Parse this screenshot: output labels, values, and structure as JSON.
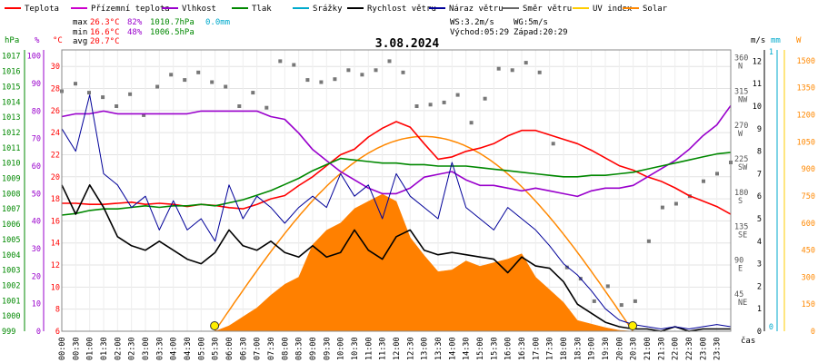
{
  "chart_data": {
    "type": "line",
    "title": "3.08.2024",
    "legend": [
      {
        "label": "Teplota",
        "color": "#ff0000"
      },
      {
        "label": "Přízemní teplota",
        "color": "#cc00cc"
      },
      {
        "label": "Vlhkost",
        "color": "#9900cc"
      },
      {
        "label": "Tlak",
        "color": "#008800"
      },
      {
        "label": "Srážky",
        "color": "#00aacc"
      },
      {
        "label": "Rychlost větru",
        "color": "#000000"
      },
      {
        "label": "Náraz větru",
        "color": "#000099"
      },
      {
        "label": "Směr větru",
        "color": "#666666"
      },
      {
        "label": "UV index",
        "color": "#ffcc00"
      },
      {
        "label": "Solar",
        "color": "#ff8800"
      }
    ],
    "stats": {
      "max_label": "max",
      "max_temp": "26.3°C",
      "max_hum": "82%",
      "max_press": "1010.7hPa",
      "rain": "0.0mm",
      "min_label": "min",
      "min_temp": "16.6°C",
      "min_hum": "48%",
      "min_press": "1006.5hPa",
      "avg_label": "avg",
      "avg_temp": "20.7°C",
      "wind_speed": "WS:3.2m/s",
      "wind_gust": "WG:5m/s",
      "sunrise": "Východ:05:29",
      "sunset": "Západ:20:29"
    },
    "axis_units": {
      "hpa": "hPa",
      "pct": "%",
      "temp": "°C",
      "ms": "m/s",
      "mm": "mm",
      "w": "W",
      "time": "čas"
    },
    "axes": {
      "hpa_ticks": [
        1017,
        1016,
        1015,
        1014,
        1013,
        1012,
        1011,
        1010,
        1009,
        1008,
        1007,
        1006,
        1005,
        1004,
        1003,
        1002,
        1001,
        1000,
        999
      ],
      "pct_ticks": [
        100,
        90,
        80,
        70,
        60,
        50,
        40,
        30,
        20,
        10,
        0
      ],
      "temp_ticks": [
        30,
        28,
        26,
        24,
        22,
        20,
        18,
        16,
        14,
        12,
        10,
        8,
        6
      ],
      "ms_ticks": [
        12,
        11,
        10,
        9,
        8,
        7,
        6,
        5,
        4,
        3,
        2,
        1,
        0
      ],
      "mm_ticks": [
        1,
        0
      ],
      "w_ticks": [
        1500,
        1350,
        1200,
        1050,
        900,
        750,
        600,
        450,
        300,
        150,
        0
      ],
      "dir_ticks": [
        {
          "deg": 360,
          "name": "N"
        },
        {
          "deg": 315,
          "name": "NW"
        },
        {
          "deg": 270,
          "name": "W"
        },
        {
          "deg": 225,
          "name": "SW"
        },
        {
          "deg": 180,
          "name": "S"
        },
        {
          "deg": 135,
          "name": "SE"
        },
        {
          "deg": 90,
          "name": "E"
        },
        {
          "deg": 45,
          "name": "NE"
        }
      ],
      "x_ticks": [
        "00:00",
        "00:30",
        "01:00",
        "01:30",
        "02:00",
        "02:30",
        "03:00",
        "03:30",
        "04:00",
        "04:30",
        "05:00",
        "05:30",
        "06:00",
        "06:30",
        "07:00",
        "07:30",
        "08:00",
        "08:30",
        "09:00",
        "09:30",
        "10:00",
        "10:30",
        "11:00",
        "11:30",
        "12:00",
        "12:30",
        "13:00",
        "13:30",
        "14:00",
        "14:30",
        "15:00",
        "15:30",
        "16:00",
        "16:30",
        "17:00",
        "17:30",
        "18:00",
        "18:30",
        "19:00",
        "19:30",
        "20:00",
        "20:30",
        "21:00",
        "21:30",
        "22:00",
        "22:30",
        "23:00",
        "23:30"
      ],
      "temp_range": [
        6,
        31.5
      ],
      "hpa_range": [
        999,
        1017.4
      ],
      "ms_range": [
        0,
        12.5
      ],
      "w_range": [
        0,
        1560
      ]
    },
    "x_hours": [
      0,
      1,
      2,
      3,
      4,
      5,
      6,
      7,
      8,
      9,
      10,
      11,
      12,
      13,
      14,
      15,
      16,
      17,
      18,
      19,
      20,
      21,
      22,
      23,
      24
    ],
    "series": [
      {
        "name": "Teplota",
        "unit": "°C",
        "color": "#ff0000",
        "x": [
          0,
          0.5,
          1,
          1.5,
          2,
          2.5,
          3,
          3.5,
          4,
          4.5,
          5,
          5.5,
          6,
          6.5,
          7,
          7.5,
          8,
          8.5,
          9,
          9.5,
          10,
          10.5,
          11,
          11.5,
          12,
          12.5,
          13,
          13.5,
          14,
          14.5,
          15,
          15.5,
          16,
          16.5,
          17,
          17.5,
          18,
          18.5,
          19,
          19.5,
          20,
          20.5,
          21,
          21.5,
          22,
          22.5,
          23,
          23.5,
          24
        ],
        "values": [
          17.6,
          17.6,
          17.5,
          17.5,
          17.6,
          17.7,
          17.5,
          17.6,
          17.5,
          17.3,
          17.5,
          17.4,
          17.2,
          17.1,
          17.5,
          18.0,
          18.3,
          19.2,
          20.0,
          21.0,
          22.0,
          22.5,
          23.6,
          24.4,
          25.0,
          24.5,
          23.0,
          21.6,
          21.8,
          22.3,
          22.6,
          23.0,
          23.7,
          24.2,
          24.2,
          23.8,
          23.4,
          23.0,
          22.4,
          21.7,
          21.0,
          20.6,
          20.0,
          19.6,
          19.0,
          18.3,
          17.8,
          17.3,
          16.6
        ]
      },
      {
        "name": "Vlhkost",
        "unit": "%",
        "color": "#9900cc",
        "x": [
          0,
          0.5,
          1,
          1.5,
          2,
          2.5,
          3,
          3.5,
          4,
          4.5,
          5,
          5.5,
          6,
          6.5,
          7,
          7.5,
          8,
          8.5,
          9,
          9.5,
          10,
          10.5,
          11,
          11.5,
          12,
          12.5,
          13,
          13.5,
          14,
          14.5,
          15,
          15.5,
          16,
          16.5,
          17,
          17.5,
          18,
          18.5,
          19,
          19.5,
          20,
          20.5,
          21,
          21.5,
          22,
          22.5,
          23,
          23.5,
          24
        ],
        "values": [
          78,
          79,
          79,
          80,
          79,
          79,
          79,
          79,
          79,
          79,
          80,
          80,
          80,
          80,
          80,
          78,
          77,
          72,
          66,
          62,
          58,
          55,
          52,
          50,
          50,
          52,
          56,
          57,
          58,
          55,
          53,
          53,
          52,
          51,
          52,
          51,
          50,
          49,
          51,
          52,
          52,
          53,
          56,
          59,
          62,
          66,
          71,
          75,
          82
        ]
      },
      {
        "name": "Tlak",
        "unit": "hPa",
        "color": "#008800",
        "x": [
          0,
          0.5,
          1,
          1.5,
          2,
          2.5,
          3,
          3.5,
          4,
          4.5,
          5,
          5.5,
          6,
          6.5,
          7,
          7.5,
          8,
          8.5,
          9,
          9.5,
          10,
          10.5,
          11,
          11.5,
          12,
          12.5,
          13,
          13.5,
          14,
          14.5,
          15,
          15.5,
          16,
          16.5,
          17,
          17.5,
          18,
          18.5,
          19,
          19.5,
          20,
          20.5,
          21,
          21.5,
          22,
          22.5,
          23,
          23.5,
          24
        ],
        "values": [
          1006.6,
          1006.7,
          1006.9,
          1007.0,
          1007.0,
          1007.1,
          1007.2,
          1007.1,
          1007.2,
          1007.2,
          1007.3,
          1007.2,
          1007.4,
          1007.6,
          1007.9,
          1008.2,
          1008.6,
          1009.0,
          1009.5,
          1009.9,
          1010.3,
          1010.2,
          1010.1,
          1010.0,
          1010.0,
          1009.9,
          1009.9,
          1009.8,
          1009.8,
          1009.8,
          1009.7,
          1009.6,
          1009.5,
          1009.4,
          1009.3,
          1009.2,
          1009.1,
          1009.1,
          1009.2,
          1009.2,
          1009.3,
          1009.4,
          1009.6,
          1009.8,
          1010.0,
          1010.2,
          1010.4,
          1010.6,
          1010.7
        ]
      },
      {
        "name": "Rychlost větru",
        "unit": "m/s",
        "color": "#000000",
        "x": [
          0,
          0.5,
          1,
          1.5,
          2,
          2.5,
          3,
          3.5,
          4,
          4.5,
          5,
          5.5,
          6,
          6.5,
          7,
          7.5,
          8,
          8.5,
          9,
          9.5,
          10,
          10.5,
          11,
          11.5,
          12,
          12.5,
          13,
          13.5,
          14,
          14.5,
          15,
          15.5,
          16,
          16.5,
          17,
          17.5,
          18,
          18.5,
          19,
          19.5,
          20,
          20.5,
          21,
          21.5,
          22,
          22.5,
          23,
          23.5,
          24
        ],
        "values": [
          6.5,
          5.2,
          6.5,
          5.5,
          4.2,
          3.8,
          3.6,
          4.0,
          3.6,
          3.2,
          3.0,
          3.5,
          4.5,
          3.8,
          3.6,
          4.0,
          3.5,
          3.3,
          3.8,
          3.3,
          3.5,
          4.5,
          3.6,
          3.2,
          4.2,
          4.5,
          3.6,
          3.4,
          3.5,
          3.4,
          3.3,
          3.2,
          2.6,
          3.3,
          2.9,
          2.8,
          2.2,
          1.2,
          0.8,
          0.4,
          0.2,
          0.1,
          0.1,
          0.0,
          0.2,
          0.0,
          0.1,
          0.1,
          0.1
        ]
      },
      {
        "name": "Náraz větru",
        "unit": "m/s",
        "color": "#000099",
        "x": [
          0,
          0.5,
          1,
          1.5,
          2,
          2.5,
          3,
          3.5,
          4,
          4.5,
          5,
          5.5,
          6,
          6.5,
          7,
          7.5,
          8,
          8.5,
          9,
          9.5,
          10,
          10.5,
          11,
          11.5,
          12,
          12.5,
          13,
          13.5,
          14,
          14.5,
          15,
          15.5,
          16,
          16.5,
          17,
          17.5,
          18,
          18.5,
          19,
          19.5,
          20,
          20.5,
          21,
          21.5,
          22,
          22.5,
          23,
          23.5,
          24
        ],
        "values": [
          9.0,
          8.0,
          10.5,
          7.0,
          6.5,
          5.5,
          6.0,
          4.5,
          5.8,
          4.5,
          5.0,
          4.0,
          6.5,
          5.0,
          6.0,
          5.5,
          4.8,
          5.5,
          6.0,
          5.5,
          7.0,
          6.0,
          6.5,
          5.0,
          7.0,
          6.0,
          5.5,
          5.0,
          7.5,
          5.5,
          5.0,
          4.5,
          5.5,
          5.0,
          4.5,
          3.8,
          3.0,
          2.5,
          1.8,
          1.0,
          0.5,
          0.3,
          0.2,
          0.1,
          0.2,
          0.1,
          0.2,
          0.3,
          0.2
        ]
      },
      {
        "name": "Solar",
        "unit": "W",
        "color": "#ff8800",
        "x": [
          5.5,
          6,
          6.5,
          7,
          7.5,
          8,
          8.5,
          9,
          9.5,
          10,
          10.5,
          11,
          11.5,
          12,
          12.5,
          13,
          13.5,
          14,
          14.5,
          15,
          15.5,
          16,
          16.5,
          17,
          17.5,
          18,
          18.5,
          19,
          19.5,
          20,
          20.5
        ],
        "values": [
          0,
          30,
          80,
          130,
          200,
          260,
          300,
          480,
          560,
          600,
          680,
          720,
          760,
          720,
          520,
          420,
          330,
          340,
          390,
          360,
          380,
          400,
          430,
          300,
          230,
          160,
          60,
          40,
          20,
          5,
          0
        ]
      }
    ],
    "solar_theoretical": {
      "name": "Solar",
      "x_range": [
        5.49,
        20.49
      ],
      "peak": 1080
    },
    "wind_direction_deg": {
      "x_start": 0,
      "x_end": 24,
      "values": [
        320,
        330,
        318,
        312,
        300,
        316,
        288,
        326,
        342,
        335,
        345,
        332,
        326,
        300,
        318,
        298,
        360,
        355,
        335,
        332,
        336,
        348,
        342,
        348,
        360,
        345,
        300,
        302,
        305,
        315,
        278,
        310,
        350,
        348,
        358,
        345,
        250,
        85,
        70,
        40,
        60,
        35,
        40,
        120,
        165,
        170,
        180,
        200,
        210,
        225
      ]
    },
    "sun_markers": [
      {
        "time": "05:29",
        "hour": 5.48
      },
      {
        "time": "20:29",
        "hour": 20.48
      }
    ]
  }
}
